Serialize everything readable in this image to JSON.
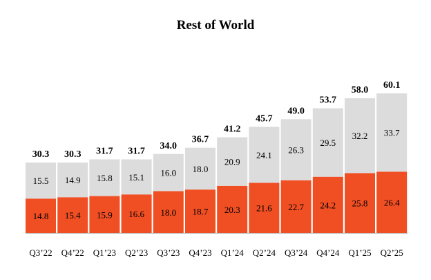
{
  "chart_data": {
    "type": "bar",
    "stacked": true,
    "title": "Rest of World",
    "xlabel": "",
    "ylabel": "",
    "ylim": [
      0,
      70
    ],
    "grid": false,
    "legend": "none",
    "categories": [
      "Q3’22",
      "Q4’22",
      "Q1’23",
      "Q2’23",
      "Q3’23",
      "Q4’23",
      "Q1’24",
      "Q2’24",
      "Q3’24",
      "Q4’24",
      "Q1’25",
      "Q2’25"
    ],
    "series": [
      {
        "name": "Bottom segment",
        "color": "#F04E23",
        "values": [
          14.8,
          15.4,
          15.9,
          16.6,
          18.0,
          18.7,
          20.3,
          21.6,
          22.7,
          24.2,
          25.8,
          26.4
        ]
      },
      {
        "name": "Top segment",
        "color": "#DCDCDC",
        "values": [
          15.5,
          14.9,
          15.8,
          15.1,
          16.0,
          18.0,
          20.9,
          24.1,
          26.3,
          29.5,
          32.2,
          33.7
        ]
      }
    ],
    "totals": [
      30.3,
      30.3,
      31.7,
      31.7,
      34.0,
      36.7,
      41.2,
      45.7,
      49.0,
      53.7,
      58.0,
      60.1
    ],
    "colors": {
      "bottom": "#F04E23",
      "top": "#DCDCDC",
      "axis": "#BBBBBB",
      "text": "#000000"
    }
  }
}
